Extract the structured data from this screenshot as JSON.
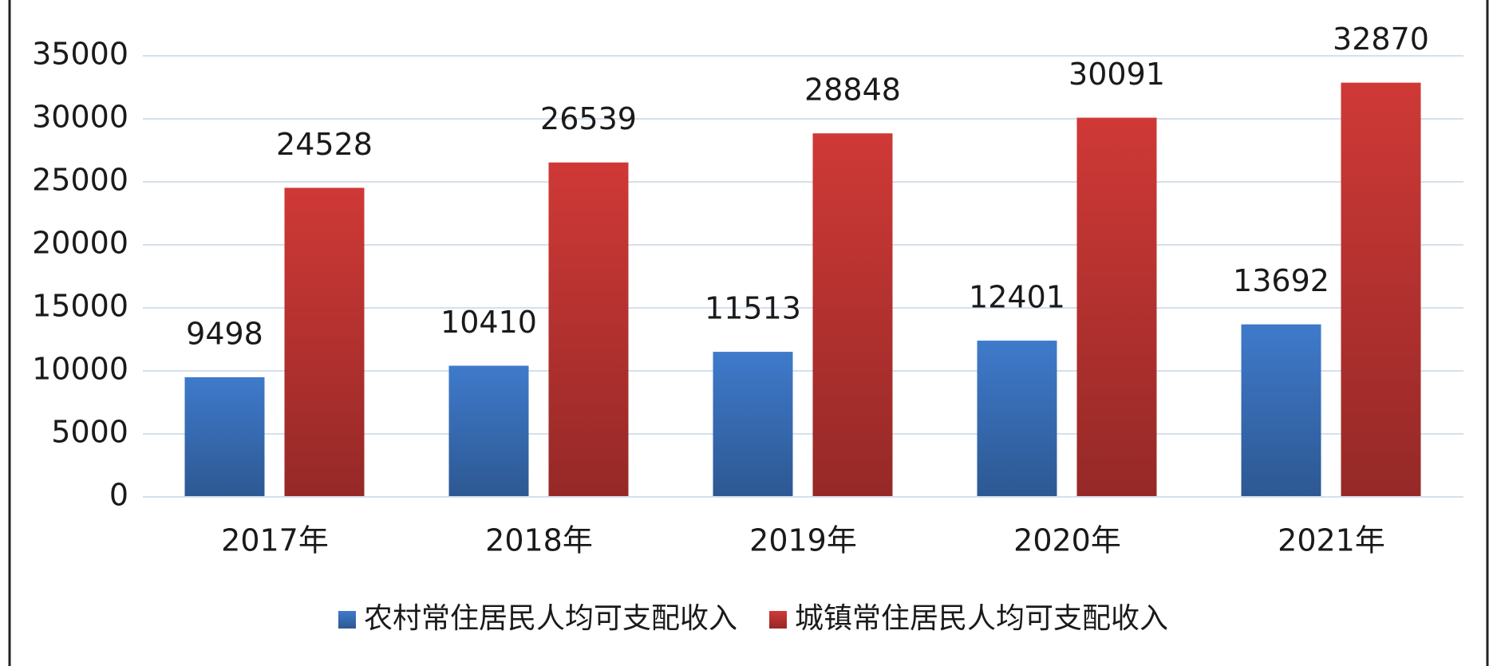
{
  "chart_data": {
    "type": "bar",
    "categories": [
      "2017年",
      "2018年",
      "2019年",
      "2020年",
      "2021年"
    ],
    "series": [
      {
        "name": "农村常住居民人均可支配收入",
        "color": "#3f7acb",
        "values": [
          9498,
          10410,
          11513,
          12401,
          13692
        ]
      },
      {
        "name": "城镇常住居民人均可支配收入",
        "color": "#cf3936",
        "values": [
          24528,
          26539,
          28848,
          30091,
          32870
        ]
      }
    ],
    "ylim": [
      0,
      35000
    ],
    "yticks": [
      0,
      5000,
      10000,
      15000,
      20000,
      25000,
      30000,
      35000
    ],
    "grid": true,
    "legend": "bottom"
  }
}
